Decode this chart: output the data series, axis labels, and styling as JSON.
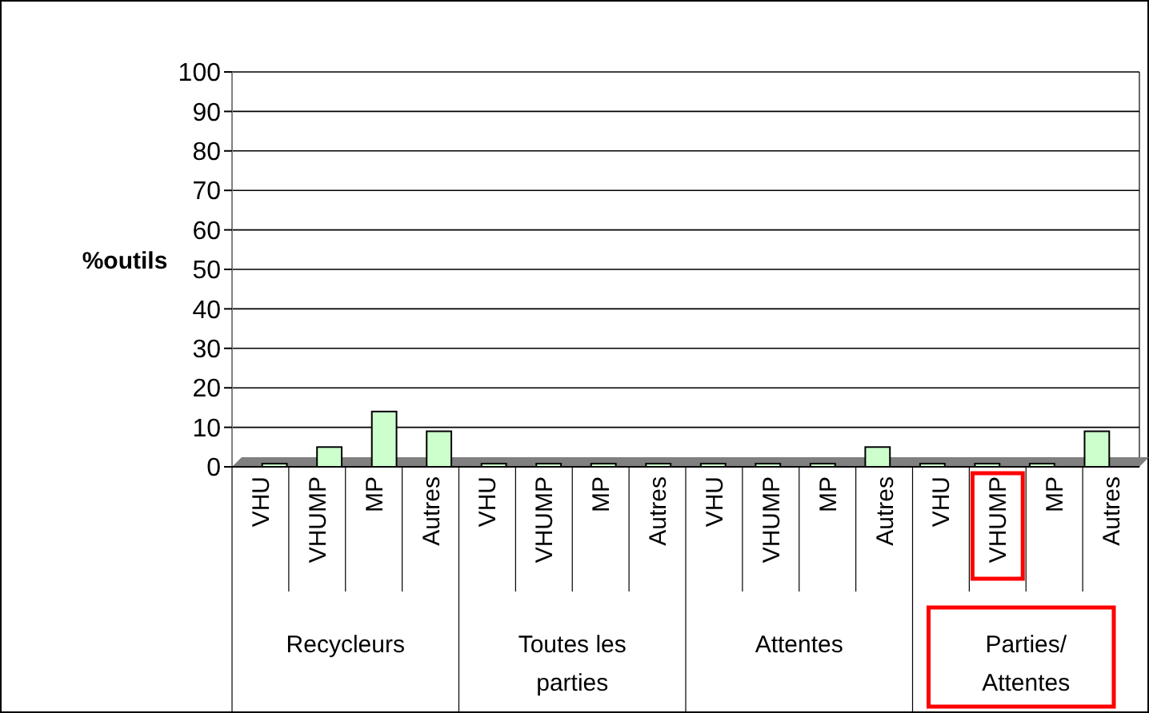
{
  "chart_data": {
    "type": "bar",
    "ylabel": "%outils",
    "categories": [
      "VHU",
      "VHUMP",
      "MP",
      "Autres",
      "VHU",
      "VHUMP",
      "MP",
      "Autres",
      "VHU",
      "VHUMP",
      "MP",
      "Autres",
      "VHU",
      "VHUMP",
      "MP",
      "Autres"
    ],
    "values": [
      0,
      5,
      14,
      9,
      0,
      0,
      0,
      0,
      0,
      0,
      0,
      5,
      0,
      0,
      0,
      9
    ],
    "color": "#ccffcc",
    "ylim": [
      0,
      100
    ],
    "yticks": [
      0,
      10,
      20,
      30,
      40,
      50,
      60,
      70,
      80,
      90,
      100
    ],
    "grid": "y",
    "annotations": [
      "Recycleurs",
      "Toutes les parties",
      "Attentes",
      "Parties/ Attentes"
    ]
  }
}
